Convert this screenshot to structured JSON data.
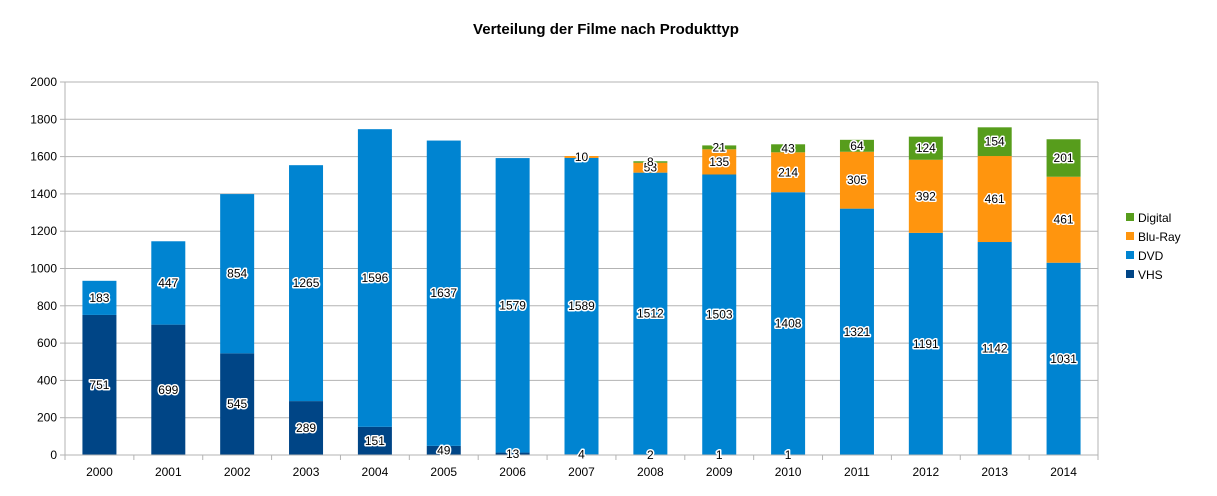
{
  "chart_data": {
    "type": "bar",
    "stacked": true,
    "title": "Verteilung der Filme nach Produkttyp",
    "xlabel": "",
    "ylabel": "",
    "ylim": [
      0,
      2000
    ],
    "yticks": [
      0,
      200,
      400,
      600,
      800,
      1000,
      1200,
      1400,
      1600,
      1800,
      2000
    ],
    "grid": true,
    "legend_position": "right",
    "categories": [
      "2000",
      "2001",
      "2002",
      "2003",
      "2004",
      "2005",
      "2006",
      "2007",
      "2008",
      "2009",
      "2010",
      "2011",
      "2012",
      "2013",
      "2014"
    ],
    "series": [
      {
        "name": "VHS",
        "color": "#004586",
        "values": [
          751,
          699,
          545,
          289,
          151,
          49,
          13,
          4,
          2,
          1,
          1,
          null,
          null,
          null,
          null
        ]
      },
      {
        "name": "DVD",
        "color": "#0084d1",
        "values": [
          183,
          447,
          854,
          1265,
          1596,
          1637,
          1579,
          1589,
          1512,
          1503,
          1408,
          1321,
          1191,
          1142,
          1031
        ]
      },
      {
        "name": "Blu-Ray",
        "color": "#ff950e",
        "values": [
          null,
          null,
          null,
          null,
          null,
          null,
          null,
          10,
          53,
          135,
          214,
          305,
          392,
          461,
          461
        ]
      },
      {
        "name": "Digital",
        "color": "#579d1c",
        "values": [
          null,
          null,
          null,
          null,
          null,
          null,
          null,
          null,
          8,
          21,
          43,
          64,
          124,
          154,
          201
        ]
      }
    ]
  }
}
